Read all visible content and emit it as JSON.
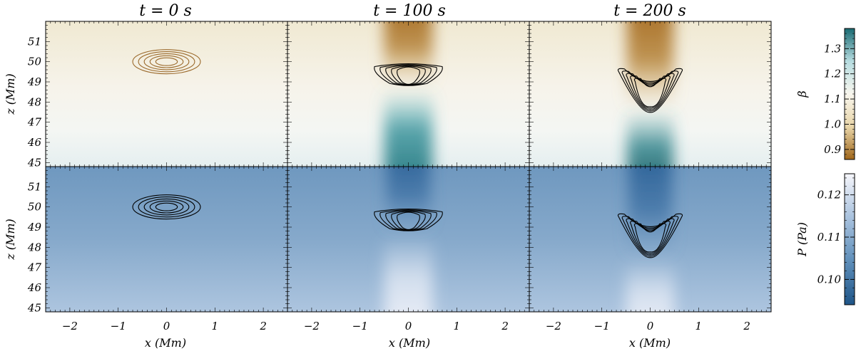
{
  "chart_data": {
    "type": "heatmap",
    "columns": [
      {
        "title": "t = 0 s"
      },
      {
        "title": "t = 100 s"
      },
      {
        "title": "t = 200 s"
      }
    ],
    "rows": [
      {
        "quantity": "beta",
        "ylabel": "z (Mm)",
        "colorbar_label": "β"
      },
      {
        "quantity": "pressure",
        "ylabel": "z (Mm)",
        "colorbar_label": "P (Pa)"
      }
    ],
    "xlabel": "x (Mm)",
    "xlim": [
      -2.5,
      2.5
    ],
    "ylim": [
      44.8,
      52.0
    ],
    "x_ticks": [
      -2,
      -1,
      0,
      1,
      2
    ],
    "y_ticks": [
      45,
      46,
      47,
      48,
      49,
      50,
      51
    ],
    "beta_colorbar": {
      "range": [
        0.86,
        1.38
      ],
      "ticks": [
        0.9,
        1.0,
        1.1,
        1.2,
        1.3
      ],
      "tick_labels": [
        "0.9",
        "1.0",
        "1.1",
        "1.2",
        "1.3"
      ],
      "colors": [
        "#a0661a",
        "#e8d5a8",
        "#f8f6ee",
        "#b6dce0",
        "#1a6b73"
      ]
    },
    "pressure_colorbar": {
      "range": [
        0.094,
        0.125
      ],
      "ticks": [
        0.1,
        0.11,
        0.12
      ],
      "tick_labels": [
        "0.10",
        "0.11",
        "0.12"
      ],
      "colors": [
        "#1f5588",
        "#5f8fba",
        "#a9c2de",
        "#f6f6fb"
      ]
    },
    "contours": [
      {
        "time": 0,
        "shape": "ellipse",
        "center_x": 0.0,
        "center_z": 50.0,
        "half_width": 0.7,
        "half_height": 0.6,
        "levels": 5
      },
      {
        "time": 100,
        "shape": "u-blob",
        "center_x": 0.0,
        "top_z": 49.9,
        "bottom_z": 48.85,
        "half_width": 0.7,
        "levels": 5
      },
      {
        "time": 200,
        "shape": "v",
        "center_x": 0.0,
        "top_z": 49.5,
        "bottom_z": 47.6,
        "half_width": 0.65,
        "levels": 5
      }
    ]
  }
}
